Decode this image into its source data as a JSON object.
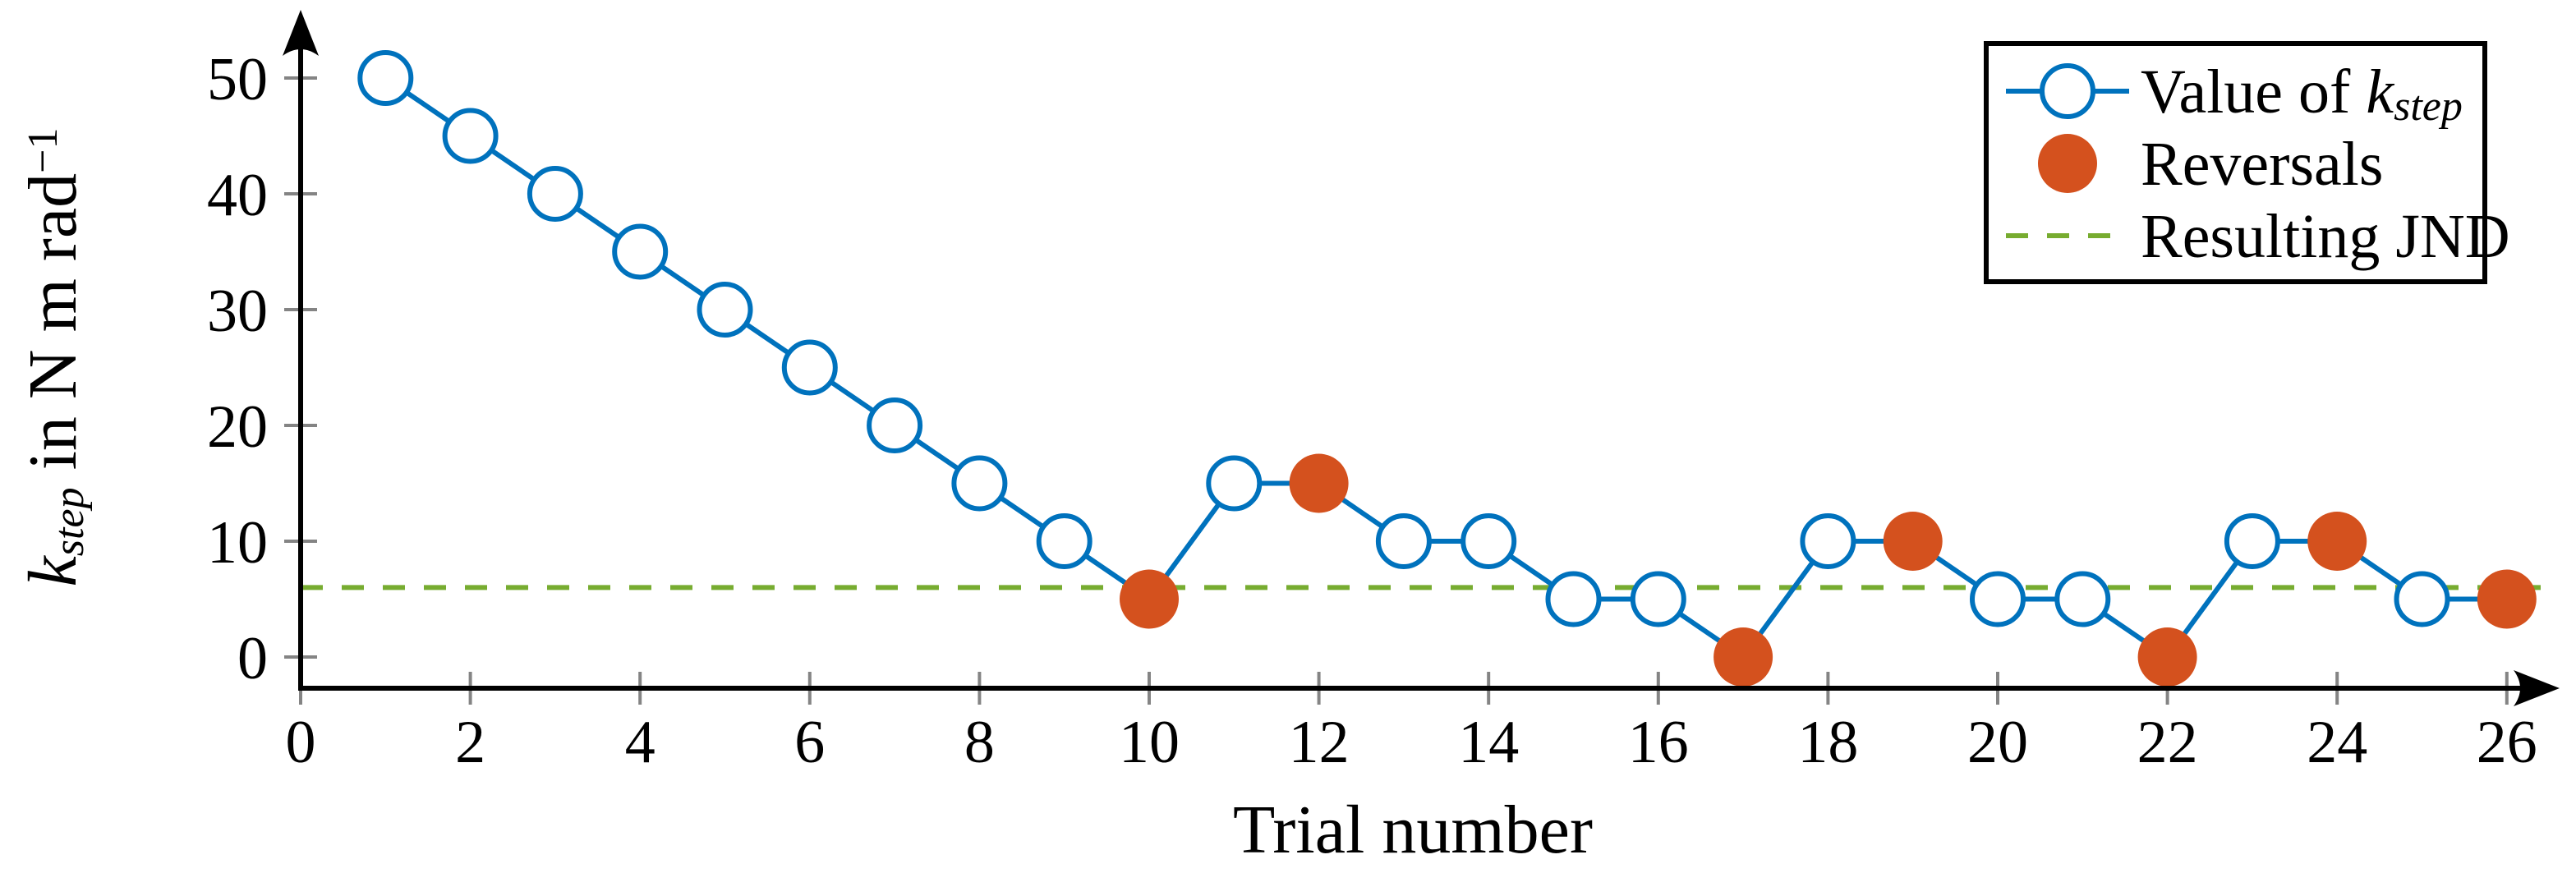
{
  "figure": {
    "background": "#ffffff"
  },
  "chart_data": {
    "type": "line",
    "title": "",
    "xlabel": "Trial number",
    "ylabel": "k_step in N m rad^-1",
    "x": [
      1,
      2,
      3,
      4,
      5,
      6,
      7,
      8,
      9,
      10,
      11,
      12,
      13,
      14,
      15,
      16,
      17,
      18,
      19,
      20,
      21,
      22,
      23,
      24,
      25,
      26
    ],
    "series": [
      {
        "name": "Value of k_step",
        "marker": "open-circle",
        "color": "#0072BD",
        "values": [
          50,
          45,
          40,
          35,
          30,
          25,
          20,
          15,
          10,
          5,
          15,
          15,
          10,
          10,
          5,
          5,
          0,
          10,
          10,
          5,
          5,
          0,
          10,
          10,
          5,
          5
        ]
      }
    ],
    "reversals": {
      "name": "Reversals",
      "marker": "filled-circle",
      "color": "#D4511E",
      "trials": [
        10,
        12,
        17,
        19,
        22,
        24,
        26
      ],
      "values": [
        5,
        15,
        0,
        10,
        0,
        10,
        5
      ]
    },
    "resulting_jnd": {
      "name": "Resulting JND",
      "value": 6,
      "style": "dashed",
      "color": "#77AC30"
    },
    "xticks": [
      0,
      2,
      4,
      6,
      8,
      10,
      12,
      14,
      16,
      18,
      20,
      22,
      24,
      26
    ],
    "yticks": [
      0,
      10,
      20,
      30,
      40,
      50
    ],
    "xlim": [
      0,
      26.6
    ],
    "ylim": [
      -2.7,
      55.7
    ],
    "grid": false,
    "legend_position": "top-right",
    "legend": [
      "Value of k_step",
      "Reversals",
      "Resulting JND"
    ]
  },
  "labels": {
    "xlabel": "Trial number",
    "ylabel_k": "k",
    "ylabel_sub": "step",
    "ylabel_rest": " in N m rad",
    "ylabel_sup": "−1",
    "legend_value_prefix": "Value of ",
    "legend_value_k": "k",
    "legend_value_sub": "step",
    "legend_reversals": "Reversals",
    "legend_jnd": "Resulting JND"
  },
  "colors": {
    "line_blue": "#0072BD",
    "reversal_orange": "#D4511E",
    "jnd_green": "#77AC30",
    "axis_black": "#000000",
    "tick_gray": "#848484",
    "text_black": "#000000",
    "background": "#ffffff"
  }
}
